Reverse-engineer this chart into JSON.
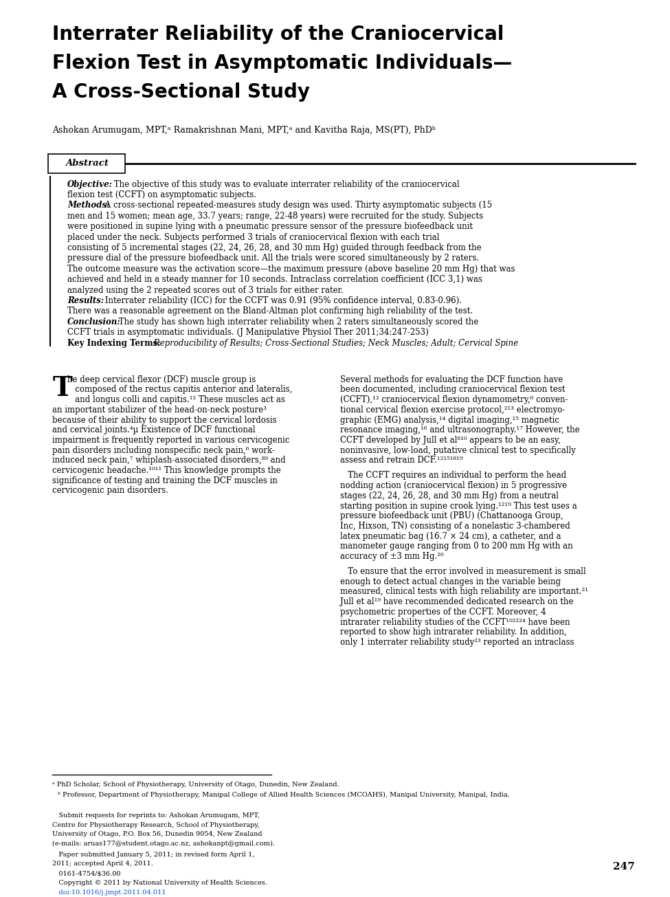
{
  "bg_color": "#ffffff",
  "page_width": 9.75,
  "page_height": 13.05,
  "title_lines": [
    "Interrater Reliability of the Craniocervical",
    "Flexion Test in Asymptomatic Individuals—",
    "A Cross-Sectional Study"
  ],
  "authors": "Ashokan Arumugam, MPT,ᵃ Ramakrishnan Mani, MPT,ᵃ and Kavitha Raja, MS(PT), PhDᵇ",
  "abstract_label": "Abstract",
  "objective_label": "Objective:",
  "objective_text": " The objective of this study was to evaluate interrater reliability of the craniocervical flexion test (CCFT) on asymptomatic subjects.",
  "methods_label": "Methods:",
  "methods_text": " A cross-sectional repeated-measures study design was used. Thirty asymptomatic subjects (15 men and 15 women; mean age, 33.7 years; range, 22-48 years) were recruited for the study. Subjects were positioned in supine lying with a pneumatic pressure sensor of the pressure biofeedback unit placed under the neck. Subjects performed 3 trials of craniocervical flexion with each trial consisting of 5 incremental stages (22, 24, 26, 28, and 30 mm Hg) guided through feedback from the pressure dial of the pressure biofeedback unit. All the trials were scored simultaneously by 2 raters. The outcome measure was the activation score—the maximum pressure (above baseline 20 mm Hg) that was achieved and held in a steady manner for 10 seconds. Intraclass correlation coefficient (ICC 3,1) was analyzed using the 2 repeated scores out of 3 trials for either rater.",
  "results_label": "Results:",
  "results_text": " Interrater reliability (ICC) for the CCFT was 0.91 (95% confidence interval, 0.83-0.96). There was a reasonable agreement on the Bland-Altman plot confirming high reliability of the test.",
  "conclusion_label": "Conclusion:",
  "conclusion_text": " The study has shown high interrater reliability when 2 raters simultaneously scored the CCFT trials in asymptomatic individuals. (J Manipulative Physiol Ther 2011;34:247-253)",
  "key_terms_label": "Key Indexing Terms:",
  "key_terms_text": " Reproducibility of Results; Cross-Sectional Studies; Neck Muscles; Adult; Cervical Spine",
  "footnote_a": "ᵃ PhD Scholar, School of Physiotherapy, University of Otago, Dunedin, New Zealand.",
  "footnote_b": "ᵇ Professor, Department of Physiotherapy, Manipal College of Allied Health Sciences (MCOAHS), Manipal University, Manipal, India.",
  "footnote_submit1": "   Submit requests for reprints to: Ashokan Arumugam, MPT,",
  "footnote_submit2": "Centre for Physiotherapy Research, School of Physiotherapy,",
  "footnote_submit3": "University of Otago, P.O. Box 56, Dunedin 9054, New Zealand",
  "footnote_submit4": "(e-mails: aruas177@student.otago.ac.nz, ashokanpt@gmail.com).",
  "footnote_paper1": "   Paper submitted January 5, 2011; in revised form April 1,",
  "footnote_paper2": "2011; accepted April 4, 2011.",
  "footnote_issn": "   0161-4754/$36.00",
  "footnote_copy": "   Copyright © 2011 by National University of Health Sciences.",
  "footnote_doi": "   doi:10.1016/j.jmpt.2011.04.011",
  "page_number": "247",
  "body_col1_drop": "T",
  "body_col1_line1": "he deep cervical flexor (DCF) muscle group is",
  "body_col1_line2": "   composed of the rectus capitis anterior and lateralis,",
  "body_col1_line3": "   and longus colli and capitis.",
  "body_col1_line3b": "¹²",
  "body_col1_rest": [
    "an important stabilizer of the head-on-neck posture³",
    "because of their ability to support the cervical lordosis",
    "and cervical joints.⁴µ Existence of DCF functional",
    "impairment is frequently reported in various cervicogenic",
    "pain disorders including nonspecific neck pain,⁶ work-",
    "induced neck pain,⁷ whiplash-associated disorders,⁸⁹ and",
    "cervicogenic headache.¹⁰¹¹ This knowledge prompts the",
    "significance of testing and training the DCF muscles in",
    "cervicogenic pain disorders."
  ],
  "body_col2_para1": [
    "Several methods for evaluating the DCF function have",
    "been documented, including craniocervical flexion test",
    "(CCFT),¹² craniocervical flexion dynamometry,⁶ conven-",
    "tional cervical flexion exercise protocol,²¹³ electromyo-",
    "graphic (EMG) analysis,¹⁴ digital imaging,¹⁵ magnetic",
    "resonance imaging,¹⁶ and ultrasonography.¹⁷ However, the",
    "CCFT developed by Jull et al⁸¹⁰ appears to be an easy,",
    "noninvasive, low-load, putative clinical test to specifically",
    "assess and retrain DCF.¹²¹⁵¹⁸¹⁹"
  ],
  "body_col2_para2": [
    "   The CCFT requires an individual to perform the head",
    "nodding action (craniocervical flexion) in 5 progressive",
    "stages (22, 24, 26, 28, and 30 mm Hg) from a neutral",
    "starting position in supine crook lying.¹²¹⁹ This test uses a",
    "pressure biofeedback unit (PBU) (Chattanooga Group,",
    "Inc, Hixson, TN) consisting of a nonelastic 3-chambered",
    "latex pneumatic bag (16.7 × 24 cm), a catheter, and a",
    "manometer gauge ranging from 0 to 200 mm Hg with an",
    "accuracy of ±3 mm Hg.²⁰"
  ],
  "body_col2_para3": [
    "   To ensure that the error involved in measurement is small",
    "enough to detect actual changes in the variable being",
    "measured, clinical tests with high reliability are important.²¹",
    "Jull et al¹⁹ have recommended dedicated research on the",
    "psychometric properties of the CCFT. Moreover, 4",
    "intrarater reliability studies of the CCFT¹⁰²²²⁴ have been",
    "reported to show high intrarater reliability. In addition,",
    "only 1 interrater reliability study²³ reported an intraclass"
  ]
}
